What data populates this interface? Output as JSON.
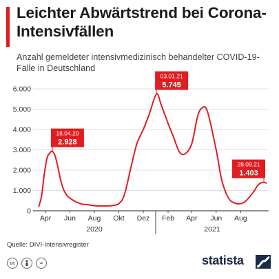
{
  "title": "Leichter Abwärtstrend bei Corona-Intensivfällen",
  "subtitle": "Anzahl gemeldeter intensivmedizinisch behandelter COVID-19-Fälle in Deutschland",
  "source": "Quelle: DIVI-Intensivregister",
  "brand": "statista",
  "icons": [
    "cc-icon",
    "person-icon",
    "equals-icon"
  ],
  "colors": {
    "accent": "#e11d21",
    "line": "#e11d21",
    "brand": "#1a2b47"
  },
  "chart_data": {
    "type": "line",
    "title": "Leichter Abwärtstrend bei Corona-Intensivfällen",
    "ylim": [
      0,
      6000
    ],
    "y_ticks": [
      "0",
      "1.000",
      "2.000",
      "3.000",
      "4.000",
      "5.000",
      "6.000"
    ],
    "x_month_ticks": [
      "Apr",
      "Jun",
      "Aug",
      "Okt",
      "Dez",
      "Feb",
      "Apr",
      "Jun",
      "Aug"
    ],
    "x_year_labels": [
      "2020",
      "2021"
    ],
    "grid": true,
    "series": [
      {
        "x": [
          "2020-03-15",
          "2020-03-22",
          "2020-03-29",
          "2020-04-05",
          "2020-04-12",
          "2020-04-18",
          "2020-04-25",
          "2020-05-02",
          "2020-05-09",
          "2020-05-16",
          "2020-05-23",
          "2020-05-30",
          "2020-06-15",
          "2020-07-01",
          "2020-07-15",
          "2020-08-01",
          "2020-08-15",
          "2020-09-01",
          "2020-09-15",
          "2020-10-01",
          "2020-10-15",
          "2020-11-01",
          "2020-11-15",
          "2020-12-01",
          "2020-12-15",
          "2021-01-03",
          "2021-01-15",
          "2021-02-01",
          "2021-02-15",
          "2021-03-01",
          "2021-03-15",
          "2021-04-01",
          "2021-04-15",
          "2021-04-26",
          "2021-05-10",
          "2021-06-01",
          "2021-06-15",
          "2021-07-01",
          "2021-07-15",
          "2021-08-01",
          "2021-08-15",
          "2021-09-01",
          "2021-09-15",
          "2021-09-28",
          "2021-10-05"
        ],
        "y": [
          200,
          700,
          1800,
          2600,
          2850,
          2928,
          2700,
          2150,
          1500,
          1050,
          800,
          650,
          450,
          330,
          300,
          250,
          240,
          240,
          260,
          350,
          800,
          2200,
          3300,
          4000,
          4700,
          5745,
          5200,
          4300,
          3600,
          2900,
          2800,
          3300,
          4600,
          5050,
          4900,
          3000,
          1500,
          650,
          400,
          350,
          500,
          900,
          1300,
          1403,
          1350
        ]
      }
    ],
    "annotations": [
      {
        "date": "18.04.20",
        "value": "2.928"
      },
      {
        "date": "03.01.21",
        "value": "5.745"
      },
      {
        "date": "28.09.21",
        "value": "1.403"
      }
    ]
  }
}
